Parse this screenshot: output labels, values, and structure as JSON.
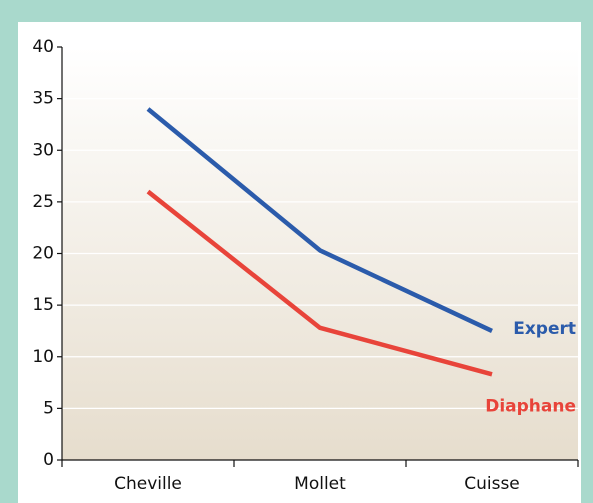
{
  "chart_data": {
    "type": "line",
    "categories": [
      "Cheville",
      "Mollet",
      "Cuisse"
    ],
    "series": [
      {
        "name": "Expert",
        "color": "#2b5bab",
        "values": [
          34,
          20.3,
          12.5
        ]
      },
      {
        "name": "Diaphane",
        "color": "#e8443a",
        "values": [
          26,
          12.8,
          8.3
        ]
      }
    ],
    "ylim": [
      0,
      40
    ],
    "yticks": [
      0,
      5,
      10,
      15,
      20,
      25,
      30,
      35,
      40
    ],
    "grid": true
  }
}
